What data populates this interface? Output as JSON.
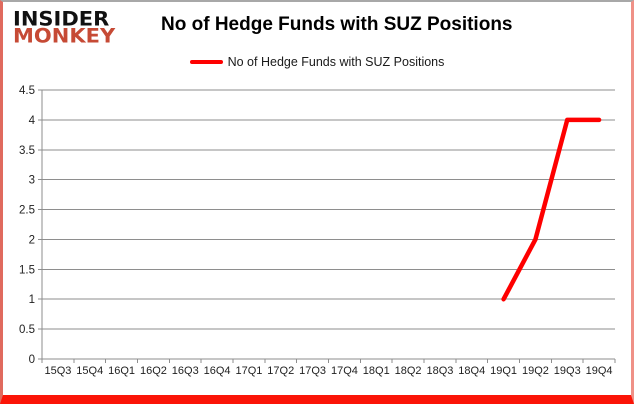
{
  "logo": {
    "line1": "INSIDER",
    "line2": "MONKEY",
    "line1_color": "#111111",
    "line2_color": "#c64a35"
  },
  "header": {
    "title": "No of Hedge Funds with SUZ Positions"
  },
  "legend": {
    "label": "No of Hedge Funds with SUZ Positions",
    "swatch_color": "#fe0000"
  },
  "colors": {
    "line": "#fe0000",
    "grid": "#8e8e8e",
    "axis_text": "#1f1f1f",
    "plot_background": "#ffffff",
    "frame_bottom": "#fb1407"
  },
  "chart_data": {
    "type": "line",
    "title": "No of Hedge Funds with SUZ Positions",
    "xlabel": "",
    "ylabel": "",
    "categories": [
      "15Q3",
      "15Q4",
      "16Q1",
      "16Q2",
      "16Q3",
      "16Q4",
      "17Q1",
      "17Q2",
      "17Q3",
      "17Q4",
      "18Q1",
      "18Q2",
      "18Q3",
      "18Q4",
      "19Q1",
      "19Q2",
      "19Q3",
      "19Q4"
    ],
    "series": [
      {
        "name": "No of Hedge Funds with SUZ Positions",
        "color": "#fe0000",
        "values": [
          null,
          null,
          null,
          null,
          null,
          null,
          null,
          null,
          null,
          null,
          null,
          null,
          null,
          null,
          1,
          2,
          4,
          4
        ]
      }
    ],
    "ylim": [
      0,
      4.5
    ],
    "ytick_step": 0.5,
    "ytick_labels": [
      "0",
      "0.5",
      "1",
      "1.5",
      "2",
      "2.5",
      "3",
      "3.5",
      "4",
      "4.5"
    ],
    "grid": true,
    "legend_position": "top"
  }
}
